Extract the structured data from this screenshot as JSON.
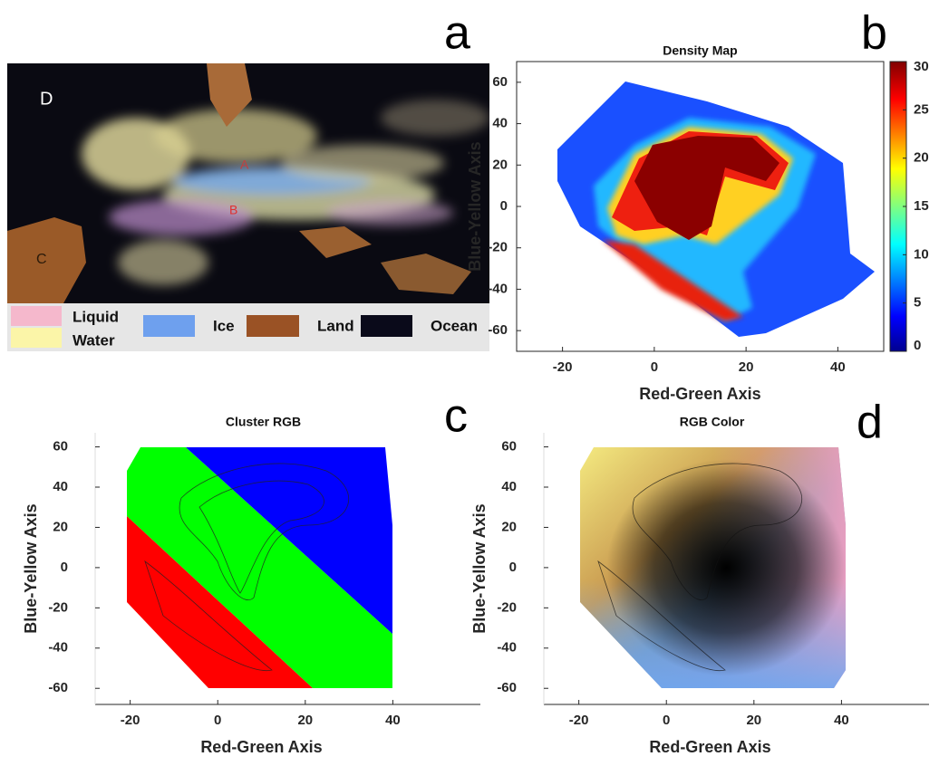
{
  "panel_a": {
    "label": "a",
    "regions": [
      "D",
      "A",
      "B",
      "C"
    ],
    "legend_labels": [
      "Liquid",
      "Water",
      "Ice",
      "Land",
      "Ocean"
    ]
  },
  "chart_data": [
    {
      "type": "heatmap",
      "panel_label": "b",
      "title": "Density Map",
      "xlabel": "Red-Green Axis",
      "ylabel": "Blue-Yellow Axis",
      "xlim": [
        -30,
        50
      ],
      "ylim": [
        -70,
        70
      ],
      "xticks": [
        -20,
        0,
        20,
        40
      ],
      "yticks": [
        -60,
        -40,
        -20,
        0,
        20,
        40,
        60
      ],
      "colorbar": {
        "lim": [
          0,
          30
        ],
        "ticks": [
          0,
          5,
          10,
          15,
          20,
          25,
          30
        ]
      }
    },
    {
      "type": "scatter",
      "panel_label": "c",
      "title": "Cluster RGB",
      "xlabel": "Red-Green Axis",
      "ylabel": "Blue-Yellow Axis",
      "xlim": [
        -28,
        60
      ],
      "ylim": [
        -68,
        67
      ],
      "xticks": [
        -20,
        0,
        20,
        40
      ],
      "yticks": [
        -60,
        -40,
        -20,
        0,
        20,
        40,
        60
      ],
      "colors": [
        "#ff0000",
        "#00ff00",
        "#0000ff"
      ]
    },
    {
      "type": "scatter",
      "panel_label": "d",
      "title": "RGB Color",
      "xlabel": "Red-Green Axis",
      "ylabel": "Blue-Yellow Axis",
      "xlim": [
        -28,
        60
      ],
      "ylim": [
        -68,
        67
      ],
      "xticks": [
        -20,
        0,
        20,
        40
      ],
      "yticks": [
        -60,
        -40,
        -20,
        0,
        20,
        40,
        60
      ]
    }
  ]
}
